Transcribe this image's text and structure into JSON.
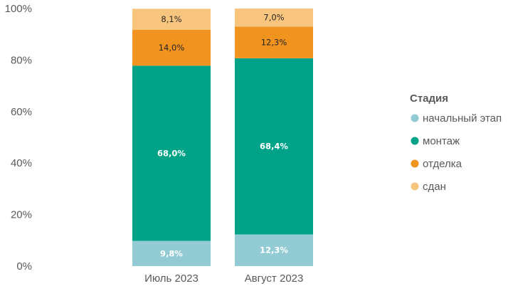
{
  "chart_data": {
    "type": "bar",
    "stacked": true,
    "percent": true,
    "categories": [
      "Июль 2023",
      "Август 2023"
    ],
    "ylim": [
      0,
      100
    ],
    "yticks": [
      "0%",
      "20%",
      "40%",
      "60%",
      "80%",
      "100%"
    ],
    "grid": false,
    "legend": {
      "title": "Стадия",
      "placement": "right"
    },
    "series": [
      {
        "name": "начальный этап",
        "color": "#92CBD3",
        "values": [
          9.8,
          12.3
        ],
        "labels": [
          "9,8%",
          "12,3%"
        ],
        "label_color": "#ffffff"
      },
      {
        "name": "монтаж",
        "color": "#00A387",
        "values": [
          68.0,
          68.4
        ],
        "labels": [
          "68,0%",
          "68,4%"
        ],
        "label_color": "#ffffff"
      },
      {
        "name": "отделка",
        "color": "#F0931F",
        "values": [
          14.0,
          12.3
        ],
        "labels": [
          "14,0%",
          "12,3%"
        ],
        "label_color": "#262626"
      },
      {
        "name": "сдан",
        "color": "#F8C57E",
        "values": [
          8.1,
          7.0
        ],
        "labels": [
          "8,1%",
          "7,0%"
        ],
        "label_color": "#262626"
      }
    ]
  }
}
